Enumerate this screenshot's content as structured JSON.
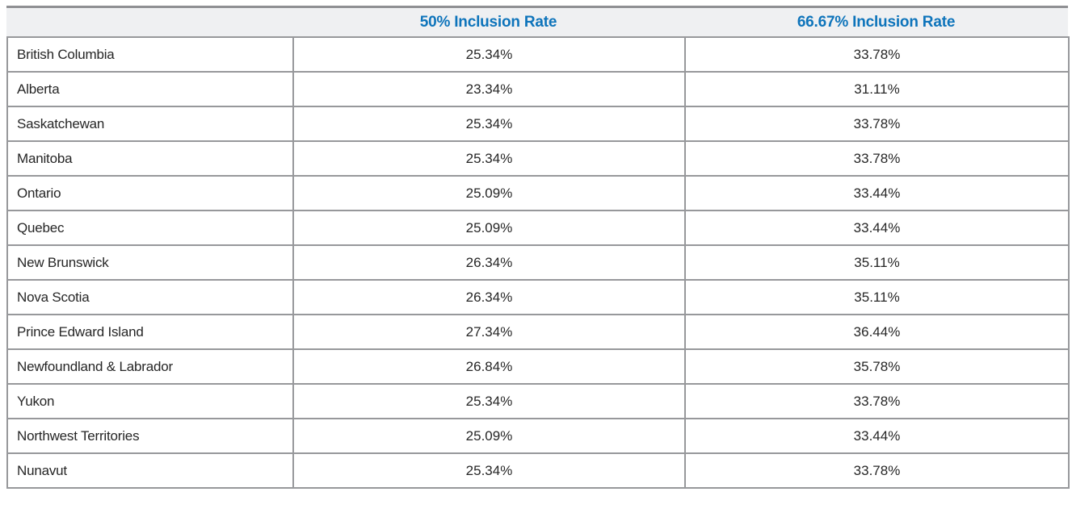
{
  "table": {
    "columns": [
      {
        "label": ""
      },
      {
        "label": "50% Inclusion Rate"
      },
      {
        "label": "66.67% Inclusion Rate"
      }
    ],
    "rows": [
      {
        "region": "British Columbia",
        "rate_50": "25.34%",
        "rate_6667": "33.78%"
      },
      {
        "region": "Alberta",
        "rate_50": "23.34%",
        "rate_6667": "31.11%"
      },
      {
        "region": "Saskatchewan",
        "rate_50": "25.34%",
        "rate_6667": "33.78%"
      },
      {
        "region": "Manitoba",
        "rate_50": "25.34%",
        "rate_6667": "33.78%"
      },
      {
        "region": "Ontario",
        "rate_50": "25.09%",
        "rate_6667": "33.44%"
      },
      {
        "region": "Quebec",
        "rate_50": "25.09%",
        "rate_6667": "33.44%"
      },
      {
        "region": "New Brunswick",
        "rate_50": "26.34%",
        "rate_6667": "35.11%"
      },
      {
        "region": "Nova Scotia",
        "rate_50": "26.34%",
        "rate_6667": "35.11%"
      },
      {
        "region": "Prince Edward Island",
        "rate_50": "27.34%",
        "rate_6667": "36.44%"
      },
      {
        "region": "Newfoundland & Labrador",
        "rate_50": "26.84%",
        "rate_6667": "35.78%"
      },
      {
        "region": "Yukon",
        "rate_50": "25.34%",
        "rate_6667": "33.78%"
      },
      {
        "region": "Northwest Territories",
        "rate_50": "25.09%",
        "rate_6667": "33.44%"
      },
      {
        "region": "Nunavut",
        "rate_50": "25.34%",
        "rate_6667": "33.78%"
      }
    ]
  },
  "colors": {
    "header_text_blue": "#0E74BB",
    "header_background": "#EFF0F2",
    "border_gray": "#97989B",
    "top_border_gray": "#8F9093",
    "body_text": "#262626"
  }
}
